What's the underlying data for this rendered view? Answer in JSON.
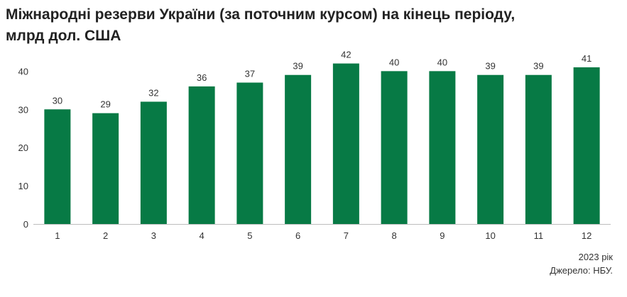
{
  "chart_data": {
    "type": "bar",
    "title_line1": "Міжнародні резерви України (за поточним курсом) на кінець періоду,",
    "title_line2": "млрд дол. США",
    "categories": [
      "1",
      "2",
      "3",
      "4",
      "5",
      "6",
      "7",
      "8",
      "9",
      "10",
      "11",
      "12"
    ],
    "values": [
      30,
      29,
      32,
      36,
      37,
      39,
      42,
      40,
      40,
      39,
      39,
      41
    ],
    "value_labels": [
      "30",
      "29",
      "32",
      "36",
      "37",
      "39",
      "42",
      "40",
      "40",
      "39",
      "39",
      "41"
    ],
    "yticks": [
      0,
      10,
      20,
      30,
      40
    ],
    "ylim": [
      0,
      46
    ],
    "grid": false,
    "legend": "none",
    "bar_color": "#077a45"
  },
  "notes": {
    "year": "2023 рік",
    "source": "Джерело: НБУ."
  }
}
